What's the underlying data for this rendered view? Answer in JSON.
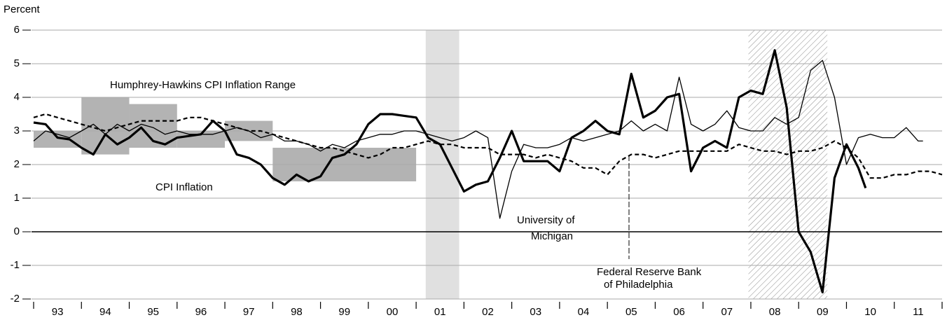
{
  "chart_data": {
    "type": "line",
    "y_axis_label": "Percent",
    "xlim": [
      1993,
      2012
    ],
    "xticks": [
      {
        "value": 1993.5,
        "label": "93"
      },
      {
        "value": 1994.5,
        "label": "94"
      },
      {
        "value": 1995.5,
        "label": "95"
      },
      {
        "value": 1996.5,
        "label": "96"
      },
      {
        "value": 1997.5,
        "label": "97"
      },
      {
        "value": 1998.5,
        "label": "98"
      },
      {
        "value": 1999.5,
        "label": "99"
      },
      {
        "value": 2000.5,
        "label": "00"
      },
      {
        "value": 2001.5,
        "label": "01"
      },
      {
        "value": 2002.5,
        "label": "02"
      },
      {
        "value": 2003.5,
        "label": "03"
      },
      {
        "value": 2004.5,
        "label": "04"
      },
      {
        "value": 2005.5,
        "label": "05"
      },
      {
        "value": 2006.5,
        "label": "06"
      },
      {
        "value": 2007.5,
        "label": "07"
      },
      {
        "value": 2008.5,
        "label": "08"
      },
      {
        "value": 2009.5,
        "label": "09"
      },
      {
        "value": 2010.5,
        "label": "10"
      },
      {
        "value": 2011.5,
        "label": "11"
      }
    ],
    "ylim": [
      -2,
      6
    ],
    "yticks": [
      -2,
      -1,
      0,
      1,
      2,
      3,
      4,
      5,
      6
    ],
    "grid": true,
    "target_ranges": [
      {
        "x0": 1993,
        "x1": 1994,
        "y0": 2.5,
        "y1": 3.0
      },
      {
        "x0": 1994,
        "x1": 1995,
        "y0": 2.3,
        "y1": 4.0
      },
      {
        "x0": 1995,
        "x1": 1996,
        "y0": 2.5,
        "y1": 3.8
      },
      {
        "x0": 1996,
        "x1": 1997,
        "y0": 2.5,
        "y1": 3.0
      },
      {
        "x0": 1997,
        "x1": 1998,
        "y0": 2.7,
        "y1": 3.3
      },
      {
        "x0": 1998,
        "x1": 2001,
        "y0": 1.5,
        "y1": 2.5
      }
    ],
    "recessions": [
      {
        "x0": 2001.2,
        "x1": 2001.9,
        "style": "solid"
      },
      {
        "x0": 2007.95,
        "x1": 2009.6,
        "style": "hatched"
      }
    ],
    "annotations": [
      "Humphrey-Hawkins CPI Inflation Range",
      "CPI Inflation",
      "University of",
      "Michigan",
      "Federal Reserve Bank",
      "of Philadelphia"
    ],
    "series": [
      {
        "name": "CPI Inflation",
        "color": "#000000",
        "style": "thick",
        "x": [
          1993,
          1993.25,
          1993.5,
          1993.75,
          1994,
          1994.25,
          1994.5,
          1994.75,
          1995,
          1995.25,
          1995.5,
          1995.75,
          1996,
          1996.25,
          1996.5,
          1996.75,
          1997,
          1997.25,
          1997.5,
          1997.75,
          1998,
          1998.25,
          1998.5,
          1998.75,
          1999,
          1999.25,
          1999.5,
          1999.75,
          2000,
          2000.25,
          2000.5,
          2000.75,
          2001,
          2001.25,
          2001.5,
          2001.75,
          2002,
          2002.25,
          2002.5,
          2002.75,
          2003,
          2003.25,
          2003.5,
          2003.75,
          2004,
          2004.25,
          2004.5,
          2004.75,
          2005,
          2005.25,
          2005.5,
          2005.75,
          2006,
          2006.25,
          2006.5,
          2006.75,
          2007,
          2007.25,
          2007.5,
          2007.75,
          2008,
          2008.25,
          2008.5,
          2008.75,
          2009,
          2009.25,
          2009.5,
          2009.75,
          2010,
          2010.25,
          2010.4
        ],
        "values": [
          3.25,
          3.2,
          2.8,
          2.75,
          2.5,
          2.3,
          2.9,
          2.6,
          2.8,
          3.1,
          2.7,
          2.6,
          2.8,
          2.85,
          2.9,
          3.3,
          3.0,
          2.3,
          2.2,
          2.0,
          1.6,
          1.4,
          1.7,
          1.5,
          1.65,
          2.2,
          2.3,
          2.6,
          3.2,
          3.5,
          3.5,
          3.45,
          3.4,
          2.8,
          2.6,
          1.9,
          1.2,
          1.4,
          1.5,
          2.2,
          3.0,
          2.1,
          2.1,
          2.1,
          1.8,
          2.8,
          3.0,
          3.3,
          3.0,
          2.9,
          4.7,
          3.4,
          3.6,
          4.0,
          4.1,
          1.8,
          2.5,
          2.7,
          2.5,
          4.0,
          4.2,
          4.1,
          5.4,
          3.7,
          0.0,
          -0.6,
          -1.8,
          1.6,
          2.6,
          1.9,
          1.3
        ]
      },
      {
        "name": "University of Michigan",
        "color": "#000000",
        "style": "thin",
        "x": [
          1993,
          1993.25,
          1993.5,
          1993.75,
          1994,
          1994.25,
          1994.5,
          1994.75,
          1995,
          1995.25,
          1995.5,
          1995.75,
          1996,
          1996.25,
          1996.5,
          1996.75,
          1997,
          1997.25,
          1997.5,
          1997.75,
          1998,
          1998.25,
          1998.5,
          1998.75,
          1999,
          1999.25,
          1999.5,
          1999.75,
          2000,
          2000.25,
          2000.5,
          2000.75,
          2001,
          2001.25,
          2001.5,
          2001.75,
          2002,
          2002.25,
          2002.5,
          2002.75,
          2003,
          2003.25,
          2003.5,
          2003.75,
          2004,
          2004.25,
          2004.5,
          2004.75,
          2005,
          2005.25,
          2005.5,
          2005.75,
          2006,
          2006.25,
          2006.5,
          2006.75,
          2007,
          2007.25,
          2007.5,
          2007.75,
          2008,
          2008.25,
          2008.5,
          2008.75,
          2009,
          2009.25,
          2009.5,
          2009.75,
          2010,
          2010.25,
          2010.5,
          2010.75,
          2011,
          2011.25,
          2011.5,
          2011.6
        ],
        "values": [
          2.7,
          3.0,
          2.9,
          2.8,
          3.0,
          3.2,
          2.9,
          3.2,
          3.0,
          3.2,
          3.1,
          2.9,
          3.0,
          2.9,
          2.9,
          2.9,
          3.0,
          3.1,
          3.0,
          2.8,
          2.9,
          2.7,
          2.7,
          2.6,
          2.4,
          2.6,
          2.5,
          2.7,
          2.8,
          2.9,
          2.9,
          3.0,
          3.0,
          2.9,
          2.8,
          2.7,
          2.8,
          3.0,
          2.8,
          0.4,
          1.8,
          2.6,
          2.5,
          2.5,
          2.6,
          2.8,
          2.7,
          2.8,
          2.9,
          3.0,
          3.3,
          3.0,
          3.2,
          3.0,
          4.6,
          3.2,
          3.0,
          3.2,
          3.6,
          3.1,
          3.0,
          3.0,
          3.4,
          3.2,
          3.4,
          4.8,
          5.1,
          4.0,
          2.0,
          2.8,
          2.9,
          2.8,
          2.8,
          3.1,
          2.7,
          2.7
        ]
      },
      {
        "name": "Federal Reserve Bank of Philadelphia",
        "color": "#000000",
        "style": "dashed",
        "x": [
          1993,
          1993.25,
          1993.5,
          1993.75,
          1994,
          1994.25,
          1994.5,
          1994.75,
          1995,
          1995.25,
          1995.5,
          1995.75,
          1996,
          1996.25,
          1996.5,
          1996.75,
          1997,
          1997.25,
          1997.5,
          1997.75,
          1998,
          1998.25,
          1998.5,
          1998.75,
          1999,
          1999.25,
          1999.5,
          1999.75,
          2000,
          2000.25,
          2000.5,
          2000.75,
          2001,
          2001.25,
          2001.5,
          2001.75,
          2002,
          2002.25,
          2002.5,
          2002.75,
          2003,
          2003.25,
          2003.5,
          2003.75,
          2004,
          2004.25,
          2004.5,
          2004.75,
          2005,
          2005.25,
          2005.5,
          2005.75,
          2006,
          2006.25,
          2006.5,
          2006.75,
          2007,
          2007.25,
          2007.5,
          2007.75,
          2008,
          2008.25,
          2008.5,
          2008.75,
          2009,
          2009.25,
          2009.5,
          2009.75,
          2010,
          2010.25,
          2010.5,
          2010.75,
          2011,
          2011.25,
          2011.5,
          2011.75,
          2012
        ],
        "values": [
          3.4,
          3.5,
          3.4,
          3.3,
          3.2,
          3.1,
          3.0,
          3.1,
          3.2,
          3.3,
          3.3,
          3.3,
          3.3,
          3.4,
          3.4,
          3.3,
          3.2,
          3.1,
          3.0,
          3.0,
          2.9,
          2.8,
          2.7,
          2.6,
          2.5,
          2.5,
          2.4,
          2.3,
          2.2,
          2.3,
          2.5,
          2.5,
          2.6,
          2.7,
          2.6,
          2.6,
          2.5,
          2.5,
          2.5,
          2.3,
          2.3,
          2.3,
          2.2,
          2.3,
          2.2,
          2.1,
          1.9,
          1.9,
          1.7,
          2.1,
          2.3,
          2.3,
          2.2,
          2.3,
          2.4,
          2.4,
          2.4,
          2.4,
          2.4,
          2.6,
          2.5,
          2.4,
          2.4,
          2.3,
          2.4,
          2.4,
          2.5,
          2.7,
          2.5,
          2.2,
          1.6,
          1.6,
          1.7,
          1.7,
          1.8,
          1.8,
          1.7
        ]
      }
    ]
  }
}
